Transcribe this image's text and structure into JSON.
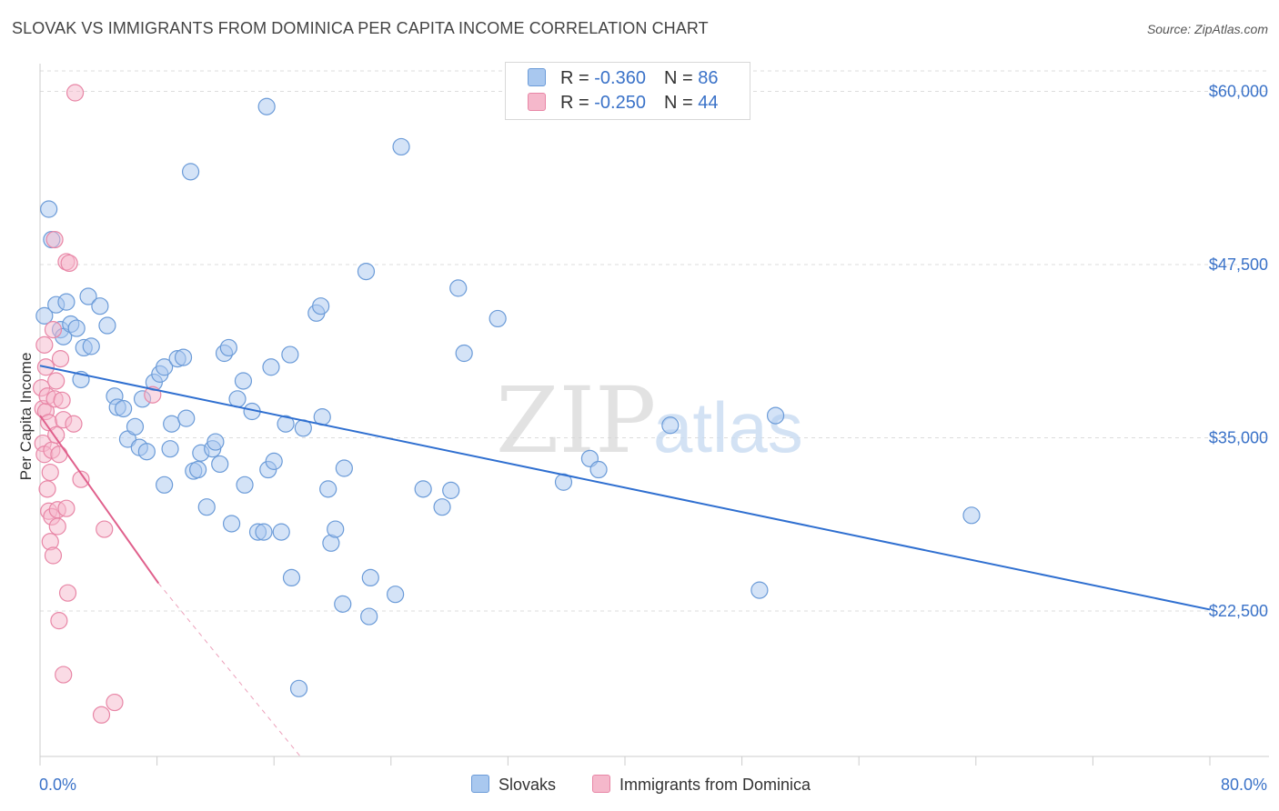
{
  "title": "SLOVAK VS IMMIGRANTS FROM DOMINICA PER CAPITA INCOME CORRELATION CHART",
  "source": "Source: ZipAtlas.com",
  "watermark": {
    "zip": "ZIP",
    "atlas": "atlas"
  },
  "legend": {
    "series1": {
      "r_label": "R = ",
      "r_value": "-0.360",
      "n_label": "N = ",
      "n_value": "86"
    },
    "series2": {
      "r_label": "R = ",
      "r_value": "-0.250",
      "n_label": "N = ",
      "n_value": "44"
    }
  },
  "bottom_legend": {
    "series1": "Slovaks",
    "series2": "Immigrants from Dominica"
  },
  "x_axis": {
    "min_label": "0.0%",
    "max_label": "80.0%"
  },
  "colors": {
    "blue_fill": "#a9c8ef",
    "blue_stroke": "#6b9bd8",
    "blue_line": "#2f6fd0",
    "pink_fill": "#f5b8cb",
    "pink_stroke": "#e886a6",
    "pink_line": "#e0608c",
    "axis_text": "#3a72c8"
  },
  "chart_data": {
    "type": "scatter",
    "title": "SLOVAK VS IMMIGRANTS FROM DOMINICA PER CAPITA INCOME CORRELATION CHART",
    "xlabel": "",
    "ylabel": "Per Capita Income",
    "xlim": [
      0,
      80
    ],
    "ylim": [
      12000,
      62000
    ],
    "y_ticks": [
      22500,
      35000,
      47500,
      60000
    ],
    "y_tick_labels": [
      "$22,500",
      "$35,000",
      "$47,500",
      "$60,000"
    ],
    "x_tick_labels": [
      "0.0%",
      "80.0%"
    ],
    "series": [
      {
        "name": "Slovaks",
        "R": -0.36,
        "N": 86,
        "trend": {
          "x": [
            0,
            80
          ],
          "y": [
            40200,
            22600
          ]
        },
        "points": [
          [
            0.3,
            43.8
          ],
          [
            0.6,
            51.5
          ],
          [
            0.8,
            49.3
          ],
          [
            1.1,
            44.6
          ],
          [
            1.4,
            42.8
          ],
          [
            1.6,
            42.3
          ],
          [
            1.8,
            44.8
          ],
          [
            2.1,
            43.2
          ],
          [
            2.5,
            42.9
          ],
          [
            2.8,
            39.2
          ],
          [
            3.0,
            41.5
          ],
          [
            3.3,
            45.2
          ],
          [
            3.5,
            41.6
          ],
          [
            4.1,
            44.5
          ],
          [
            4.6,
            43.1
          ],
          [
            5.1,
            38.0
          ],
          [
            5.3,
            37.2
          ],
          [
            5.7,
            37.1
          ],
          [
            6.0,
            34.9
          ],
          [
            6.5,
            35.8
          ],
          [
            6.8,
            34.3
          ],
          [
            7.0,
            37.8
          ],
          [
            7.3,
            34.0
          ],
          [
            7.8,
            39.0
          ],
          [
            8.2,
            39.6
          ],
          [
            8.5,
            40.1
          ],
          [
            8.5,
            31.6
          ],
          [
            8.9,
            34.2
          ],
          [
            9.0,
            36.0
          ],
          [
            9.4,
            40.7
          ],
          [
            9.8,
            40.8
          ],
          [
            10.0,
            36.4
          ],
          [
            10.3,
            54.2
          ],
          [
            10.5,
            32.6
          ],
          [
            10.8,
            32.7
          ],
          [
            11.0,
            33.9
          ],
          [
            11.4,
            30.0
          ],
          [
            11.8,
            34.2
          ],
          [
            12.0,
            34.7
          ],
          [
            12.3,
            33.1
          ],
          [
            12.6,
            41.1
          ],
          [
            12.9,
            41.5
          ],
          [
            13.1,
            28.8
          ],
          [
            13.5,
            37.8
          ],
          [
            13.9,
            39.1
          ],
          [
            14.0,
            31.6
          ],
          [
            14.5,
            36.9
          ],
          [
            14.9,
            28.2
          ],
          [
            15.3,
            28.2
          ],
          [
            15.5,
            58.9
          ],
          [
            15.6,
            32.7
          ],
          [
            15.8,
            40.1
          ],
          [
            16.0,
            33.3
          ],
          [
            16.5,
            28.2
          ],
          [
            16.8,
            36.0
          ],
          [
            17.1,
            41.0
          ],
          [
            17.2,
            24.9
          ],
          [
            17.7,
            16.9
          ],
          [
            18.0,
            35.7
          ],
          [
            18.9,
            44.0
          ],
          [
            19.2,
            44.5
          ],
          [
            19.3,
            36.5
          ],
          [
            19.7,
            31.3
          ],
          [
            19.9,
            27.4
          ],
          [
            20.2,
            28.4
          ],
          [
            20.7,
            23.0
          ],
          [
            20.8,
            32.8
          ],
          [
            22.3,
            47.0
          ],
          [
            22.5,
            22.1
          ],
          [
            22.6,
            24.9
          ],
          [
            24.3,
            23.7
          ],
          [
            24.7,
            56.0
          ],
          [
            26.2,
            31.3
          ],
          [
            27.5,
            30.0
          ],
          [
            28.1,
            31.2
          ],
          [
            28.6,
            45.8
          ],
          [
            29.0,
            41.1
          ],
          [
            31.3,
            43.6
          ],
          [
            35.8,
            31.8
          ],
          [
            37.6,
            33.5
          ],
          [
            38.2,
            32.7
          ],
          [
            43.1,
            35.9
          ],
          [
            49.2,
            24.0
          ],
          [
            50.3,
            36.6
          ],
          [
            63.7,
            29.4
          ]
        ]
      },
      {
        "name": "Immigrants from Dominica",
        "R": -0.25,
        "N": 44,
        "trend": {
          "x": [
            0,
            8.1
          ],
          "y": [
            36600,
            24500
          ]
        },
        "trend_dashed": {
          "x": [
            8.1,
            17.8
          ],
          "y": [
            24500,
            12000
          ]
        },
        "points": [
          [
            0.1,
            38.6
          ],
          [
            0.2,
            37.1
          ],
          [
            0.2,
            34.6
          ],
          [
            0.3,
            41.7
          ],
          [
            0.3,
            33.8
          ],
          [
            0.4,
            40.1
          ],
          [
            0.4,
            36.9
          ],
          [
            0.5,
            38.0
          ],
          [
            0.5,
            31.3
          ],
          [
            0.6,
            29.7
          ],
          [
            0.6,
            36.1
          ],
          [
            0.7,
            32.5
          ],
          [
            0.7,
            27.5
          ],
          [
            0.8,
            34.1
          ],
          [
            0.8,
            29.3
          ],
          [
            0.9,
            42.8
          ],
          [
            0.9,
            26.5
          ],
          [
            1.0,
            49.3
          ],
          [
            1.0,
            37.8
          ],
          [
            1.1,
            39.1
          ],
          [
            1.1,
            35.2
          ],
          [
            1.2,
            29.8
          ],
          [
            1.2,
            28.6
          ],
          [
            1.3,
            21.8
          ],
          [
            1.3,
            33.8
          ],
          [
            1.4,
            40.7
          ],
          [
            1.5,
            37.7
          ],
          [
            1.6,
            36.3
          ],
          [
            1.6,
            17.9
          ],
          [
            1.8,
            47.7
          ],
          [
            1.8,
            29.9
          ],
          [
            1.9,
            23.8
          ],
          [
            2.0,
            47.6
          ],
          [
            2.3,
            36.0
          ],
          [
            2.4,
            59.9
          ],
          [
            2.8,
            32.0
          ],
          [
            4.2,
            15.0
          ],
          [
            4.4,
            28.4
          ],
          [
            5.1,
            15.9
          ],
          [
            7.7,
            38.1
          ]
        ]
      }
    ]
  }
}
